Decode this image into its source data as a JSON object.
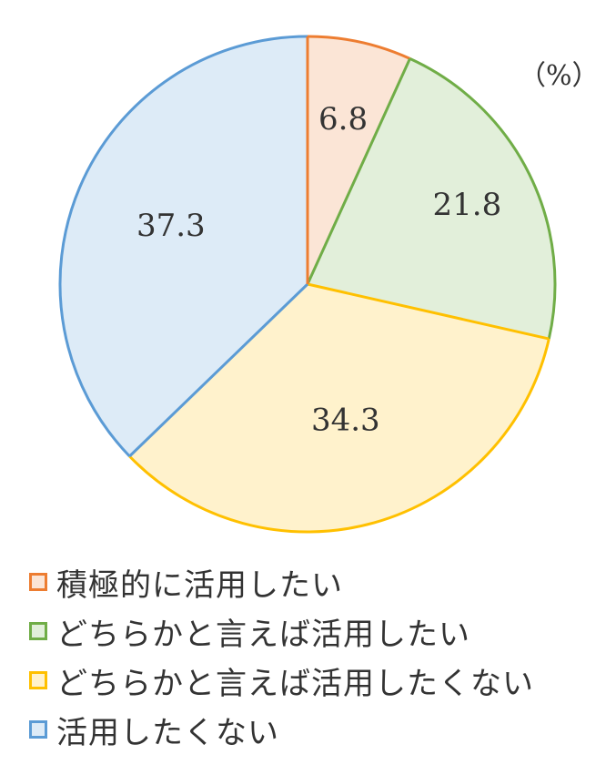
{
  "chart_data": {
    "type": "pie",
    "unit_label": "（%）",
    "slices": [
      {
        "label": "積極的に活用したい",
        "value": 6.8,
        "value_label": "6.8",
        "fill": "#fbe5d6",
        "stroke": "#ed7d31"
      },
      {
        "label": "どちらかと言えば活用したい",
        "value": 21.8,
        "value_label": "21.8",
        "fill": "#e2efda",
        "stroke": "#70ad47"
      },
      {
        "label": "どちらかと言えば活用したくない",
        "value": 34.3,
        "value_label": "34.3",
        "fill": "#fff2cc",
        "stroke": "#ffc000"
      },
      {
        "label": "活用したくない",
        "value": 37.3,
        "value_label": "37.3",
        "fill": "#ddebf7",
        "stroke": "#5b9bd5"
      }
    ],
    "start": "12 o'clock",
    "direction": "clockwise",
    "legend_position": "bottom-left"
  }
}
